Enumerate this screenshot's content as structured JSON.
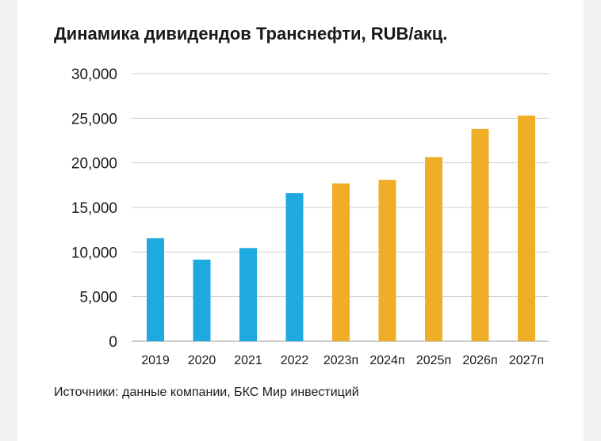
{
  "colors": {
    "actual": "#1fa9e1",
    "forecast": "#f0ae28",
    "grid": "#cfcfcf",
    "text": "#1a1a1a"
  },
  "chart_data": {
    "type": "bar",
    "title": "Динамика дивидендов Транснефти, RUB/акц.",
    "source": "Источники: данные компании, БКС Мир инвестиций",
    "xlabel": "",
    "ylabel": "",
    "ylim": [
      0,
      30000
    ],
    "yticks": [
      "0",
      "5,000",
      "10,000",
      "15,000",
      "20,000",
      "25,000",
      "30,000"
    ],
    "grid": true,
    "categories": [
      "2019",
      "2020",
      "2021",
      "2022",
      "2023п",
      "2024п",
      "2025п",
      "2026п",
      "2027п"
    ],
    "values": [
      11550,
      9150,
      10450,
      16600,
      17700,
      18100,
      20650,
      23800,
      25300
    ],
    "bar_kind": [
      "actual",
      "actual",
      "actual",
      "actual",
      "forecast",
      "forecast",
      "forecast",
      "forecast",
      "forecast"
    ]
  }
}
